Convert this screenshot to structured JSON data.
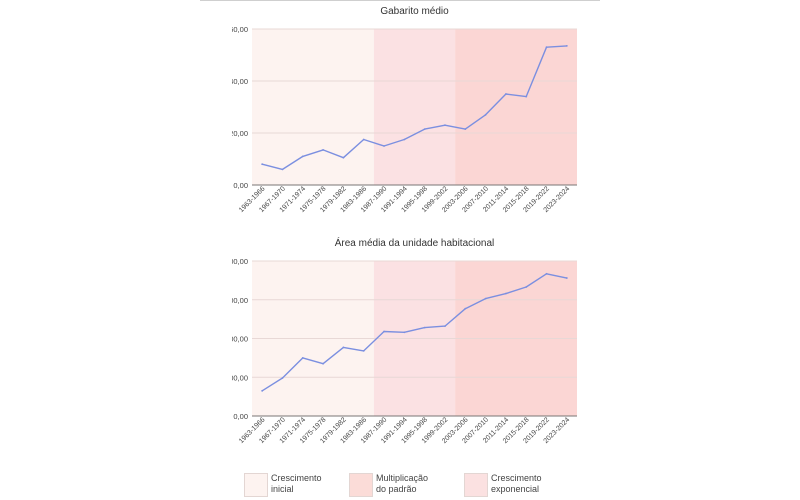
{
  "chart_data": [
    {
      "type": "line",
      "title": "Gabarito médio",
      "xlabel": "",
      "ylabel": "",
      "categories": [
        "1963-1966",
        "1967-1970",
        "1971-1974",
        "1975-1978",
        "1979-1982",
        "1983-1986",
        "1987-1990",
        "1991-1994",
        "1995-1998",
        "1999-2002",
        "2003-2006",
        "2007-2010",
        "2011-2014",
        "2015-2018",
        "2019-2022",
        "2023-2024"
      ],
      "series": [
        {
          "values": [
            8.0,
            6.0,
            11.0,
            13.5,
            10.5,
            17.5,
            15.0,
            17.5,
            21.5,
            23.0,
            21.5,
            27.0,
            35.0,
            34.0,
            53.0,
            53.5
          ]
        }
      ],
      "ylim": [
        0,
        60
      ],
      "yticks": [
        "0,00",
        "20,00",
        "40,00",
        "60,00"
      ],
      "ytick_values": [
        0,
        20,
        40,
        60
      ],
      "grid": true,
      "phases": [
        {
          "label": "Crescimento inicial",
          "from": 0,
          "to": 6,
          "color": "#fdf3f0"
        },
        {
          "label": "Multiplicação do padrão",
          "from": 6,
          "to": 10,
          "color": "#fbe1e3"
        },
        {
          "label": "Crescimento exponencial",
          "from": 10,
          "to": 16,
          "color": "#fbd6d4"
        }
      ]
    },
    {
      "type": "line",
      "title": "Área média da unidade habitacional",
      "xlabel": "",
      "ylabel": "",
      "categories": [
        "1963-1966",
        "1967-1970",
        "1971-1974",
        "1975-1978",
        "1979-1982",
        "1983-1986",
        "1987-1990",
        "1991-1994",
        "1995-1998",
        "1999-2002",
        "2003-2006",
        "2007-2010",
        "2011-2014",
        "2015-2018",
        "2019-2022",
        "2023-2024"
      ],
      "series": [
        {
          "values": [
            65,
            98,
            150,
            135,
            177,
            168,
            218,
            216,
            228,
            232,
            277,
            303,
            316,
            333,
            367,
            356
          ]
        }
      ],
      "ylim": [
        0,
        400
      ],
      "yticks": [
        "0,00",
        "100,00",
        "200,00",
        "300,00",
        "400,00"
      ],
      "ytick_values": [
        0,
        100,
        200,
        300,
        400
      ],
      "grid": true,
      "phases": [
        {
          "label": "Crescimento inicial",
          "from": 0,
          "to": 6,
          "color": "#fdf3f0"
        },
        {
          "label": "Multiplicação do padrão",
          "from": 6,
          "to": 10,
          "color": "#fbe1e3"
        },
        {
          "label": "Crescimento exponencial",
          "from": 10,
          "to": 16,
          "color": "#fbd6d4"
        }
      ]
    }
  ],
  "legend": {
    "placement": "bottom",
    "items": [
      {
        "label_1": "Crescimento",
        "label_2": "inicial",
        "color": "#fdf3f0"
      },
      {
        "label_1": "Multiplicação",
        "label_2": "do padrão",
        "color": "#fbdcd8"
      },
      {
        "label_1": "Crescimento",
        "label_2": "exponencial",
        "color": "#fbe1e1"
      }
    ]
  },
  "colors": {
    "line": "#7b8fe0",
    "grid": "#e8d8d6",
    "axis": "#444444"
  }
}
